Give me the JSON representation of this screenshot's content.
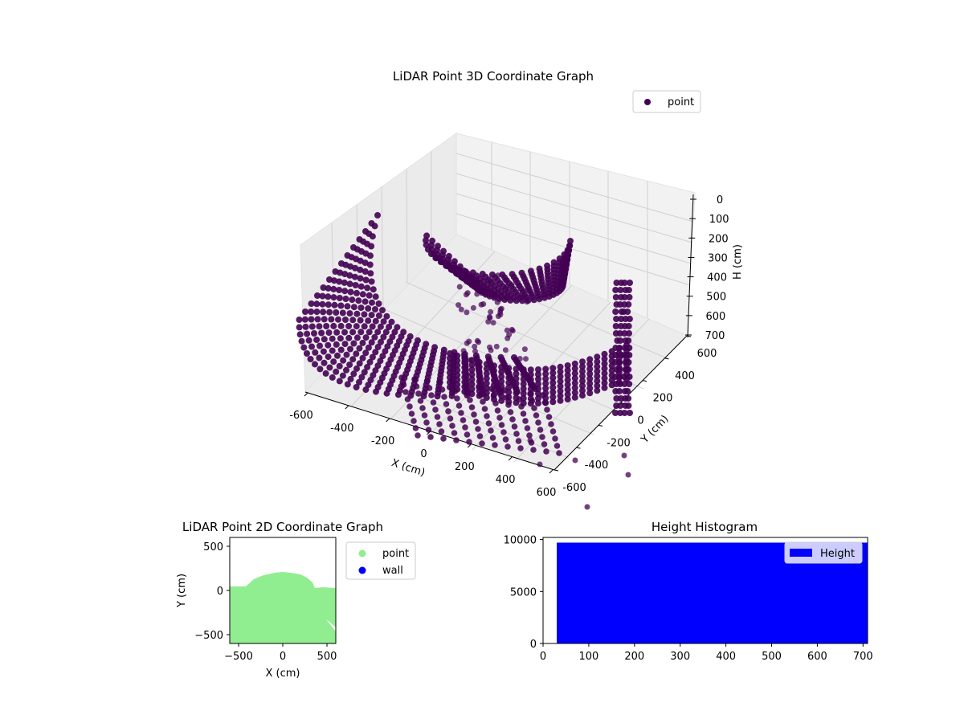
{
  "chart_data": [
    {
      "type": "scatter",
      "projection": "3d",
      "title": "LiDAR Point 3D Coordinate Graph",
      "xlabel": "X (cm)",
      "ylabel": "Y (cm)",
      "zlabel": "H (cm)",
      "xlim": [
        -600,
        600
      ],
      "ylim": [
        -600,
        600
      ],
      "zlim": [
        700,
        0
      ],
      "xticks": [
        "-600",
        "-400",
        "-200",
        "0",
        "200",
        "400",
        "600"
      ],
      "yticks": [
        "-600",
        "-400",
        "-200",
        "0",
        "200",
        "400",
        "600"
      ],
      "zticks": [
        "0",
        "100",
        "200",
        "300",
        "400",
        "500",
        "600",
        "700"
      ],
      "legend": {
        "position": "top-right",
        "entries": [
          "point"
        ]
      },
      "color": "#440154",
      "grid": true,
      "series": [
        {
          "name": "point",
          "shape": "point cloud of curved scan lines (bowl / canopy shape)"
        }
      ]
    },
    {
      "type": "scatter",
      "title": "LiDAR Point 2D Coordinate Graph",
      "xlabel": "X (cm)",
      "ylabel": "Y (cm)",
      "xlim": [
        -600,
        600
      ],
      "ylim": [
        -600,
        600
      ],
      "xticks": [
        "-500",
        "0",
        "500"
      ],
      "yticks": [
        "-500",
        "0",
        "500"
      ],
      "legend": {
        "position": "outside-right",
        "entries": [
          "point",
          "wall"
        ]
      },
      "series": [
        {
          "name": "point",
          "color": "#90ee90"
        },
        {
          "name": "wall",
          "color": "#0000ff"
        }
      ]
    },
    {
      "type": "bar",
      "title": "Height Histogram",
      "xlim": [
        0,
        710
      ],
      "ylim": [
        0,
        10200
      ],
      "xticks": [
        "0",
        "100",
        "200",
        "300",
        "400",
        "500",
        "600",
        "700"
      ],
      "yticks": [
        "0",
        "5000",
        "10000"
      ],
      "legend": {
        "position": "top-right",
        "entries": [
          "Height"
        ]
      },
      "series": [
        {
          "name": "Height",
          "color": "#0000ff",
          "bins": [
            [
              30,
              710,
              9700
            ]
          ]
        }
      ]
    }
  ]
}
